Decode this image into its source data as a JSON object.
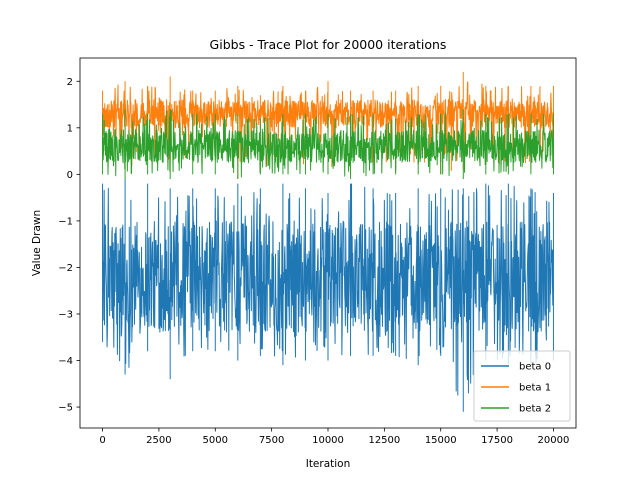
{
  "chart_data": {
    "type": "line",
    "title": "Gibbs - Trace Plot for 20000 iterations",
    "xlabel": "Iteration",
    "ylabel": "Value Drawn",
    "xlim": [
      -1000,
      21000
    ],
    "ylim": [
      -5.45,
      2.5
    ],
    "xticks": [
      0,
      2500,
      5000,
      7500,
      10000,
      12500,
      15000,
      17500,
      20000
    ],
    "xtick_labels": [
      "0",
      "2500",
      "5000",
      "7500",
      "10000",
      "12500",
      "15000",
      "17500",
      "20000"
    ],
    "yticks": [
      2,
      1,
      0,
      -1,
      -2,
      -3,
      -4,
      -5
    ],
    "ytick_labels": [
      "2",
      "1",
      "0",
      "−1",
      "−2",
      "−3",
      "−4",
      "−5"
    ],
    "grid": false,
    "legend_position": "lower-right",
    "iterations": 20000,
    "series": [
      {
        "name": "beta 0",
        "color": "#1f77b4",
        "draw_order": 0,
        "x": [
          0,
          1000,
          2000,
          3000,
          4000,
          5000,
          6000,
          7000,
          8000,
          9000,
          10000,
          11000,
          12000,
          13000,
          14000,
          15000,
          16000,
          17000,
          18000,
          19000,
          20000
        ],
        "center": [
          -2.2,
          -2.3,
          -2.2,
          -2.25,
          -2.2,
          -2.2,
          -2.2,
          -2.2,
          -2.2,
          -2.2,
          -2.2,
          -2.25,
          -2.2,
          -2.2,
          -2.2,
          -2.2,
          -2.2,
          -2.2,
          -2.2,
          -2.2,
          -2.2
        ],
        "upper": [
          -0.2,
          -0.1,
          -0.2,
          -0.3,
          -0.3,
          -0.3,
          -0.2,
          -0.3,
          -0.2,
          -0.3,
          -0.4,
          -0.2,
          -0.3,
          -0.4,
          -0.3,
          -0.3,
          -0.3,
          -0.2,
          -0.2,
          -0.3,
          -0.4
        ],
        "lower": [
          -3.6,
          -4.3,
          -3.8,
          -4.4,
          -3.8,
          -3.8,
          -4.0,
          -3.9,
          -4.1,
          -4.0,
          -4.0,
          -3.9,
          -3.9,
          -3.9,
          -4.1,
          -3.9,
          -5.1,
          -4.0,
          -4.1,
          -4.1,
          -4.0
        ],
        "q_upper": [
          -1.0,
          -0.9,
          -1.0,
          -1.0,
          -1.0,
          -1.0,
          -1.0,
          -1.0,
          -1.0,
          -1.0,
          -1.0,
          -1.0,
          -1.0,
          -1.0,
          -1.0,
          -1.0,
          -1.0,
          -1.0,
          -1.0,
          -1.0,
          -1.0
        ],
        "q_lower": [
          -3.4,
          -3.5,
          -3.4,
          -3.4,
          -3.4,
          -3.4,
          -3.4,
          -3.4,
          -3.4,
          -3.4,
          -3.4,
          -3.4,
          -3.4,
          -3.4,
          -3.4,
          -3.4,
          -3.4,
          -3.4,
          -3.4,
          -3.4,
          -3.4
        ]
      },
      {
        "name": "beta 1",
        "color": "#ff7f0e",
        "draw_order": 1,
        "x": [
          0,
          1000,
          2000,
          3000,
          4000,
          5000,
          6000,
          7000,
          8000,
          9000,
          10000,
          11000,
          12000,
          13000,
          14000,
          15000,
          16000,
          17000,
          18000,
          19000,
          20000
        ],
        "center": [
          1.3,
          1.3,
          1.3,
          1.3,
          1.3,
          1.3,
          1.3,
          1.3,
          1.3,
          1.3,
          1.3,
          1.3,
          1.3,
          1.3,
          1.3,
          1.3,
          1.3,
          1.3,
          1.3,
          1.3,
          1.3
        ],
        "upper": [
          1.8,
          2.0,
          1.9,
          2.1,
          1.8,
          1.8,
          1.9,
          1.7,
          1.9,
          1.8,
          2.0,
          1.8,
          1.8,
          1.8,
          1.9,
          1.9,
          2.2,
          1.9,
          1.9,
          1.9,
          1.9
        ],
        "lower": [
          0.4,
          0.1,
          0.3,
          0.2,
          0.3,
          0.3,
          -0.1,
          0.1,
          0.3,
          0.2,
          0.2,
          0.0,
          0.2,
          0.1,
          0.2,
          0.0,
          0.1,
          0.2,
          0.2,
          0.1,
          0.1
        ],
        "q_upper": [
          1.6,
          1.65,
          1.6,
          1.65,
          1.6,
          1.6,
          1.6,
          1.6,
          1.6,
          1.6,
          1.6,
          1.6,
          1.6,
          1.6,
          1.6,
          1.6,
          1.65,
          1.6,
          1.6,
          1.6,
          1.6
        ],
        "q_lower": [
          1.0,
          1.0,
          1.0,
          1.0,
          1.0,
          1.0,
          1.0,
          1.0,
          1.0,
          1.0,
          1.0,
          1.0,
          1.0,
          1.0,
          1.0,
          1.0,
          1.0,
          1.0,
          1.0,
          1.0,
          1.0
        ]
      },
      {
        "name": "beta 2",
        "color": "#2ca02c",
        "draw_order": 2,
        "x": [
          0,
          1000,
          2000,
          3000,
          4000,
          5000,
          6000,
          7000,
          8000,
          9000,
          10000,
          11000,
          12000,
          13000,
          14000,
          15000,
          16000,
          17000,
          18000,
          19000,
          20000
        ],
        "center": [
          0.6,
          0.6,
          0.6,
          0.6,
          0.6,
          0.6,
          0.6,
          0.6,
          0.6,
          0.6,
          0.6,
          0.6,
          0.6,
          0.6,
          0.6,
          0.6,
          0.6,
          0.6,
          0.6,
          0.6,
          0.6
        ],
        "upper": [
          1.3,
          1.4,
          1.3,
          1.4,
          1.3,
          1.3,
          1.3,
          1.2,
          1.3,
          1.3,
          1.3,
          1.3,
          1.3,
          1.2,
          1.3,
          1.3,
          1.4,
          1.3,
          1.3,
          1.3,
          1.3
        ],
        "lower": [
          0.0,
          -0.1,
          0.0,
          -0.1,
          0.0,
          0.0,
          -0.1,
          0.0,
          0.0,
          0.0,
          0.0,
          -0.1,
          0.0,
          0.0,
          0.0,
          0.0,
          -0.1,
          0.0,
          0.0,
          0.0,
          0.0
        ],
        "q_upper": [
          0.95,
          1.0,
          0.95,
          0.95,
          0.95,
          0.95,
          0.95,
          0.95,
          0.95,
          0.95,
          0.95,
          0.95,
          0.95,
          0.95,
          0.95,
          0.95,
          0.95,
          0.95,
          0.95,
          0.95,
          0.95
        ],
        "q_lower": [
          0.25,
          0.25,
          0.25,
          0.25,
          0.25,
          0.25,
          0.25,
          0.25,
          0.25,
          0.25,
          0.25,
          0.25,
          0.25,
          0.25,
          0.25,
          0.25,
          0.25,
          0.25,
          0.25,
          0.25,
          0.25
        ]
      }
    ]
  }
}
